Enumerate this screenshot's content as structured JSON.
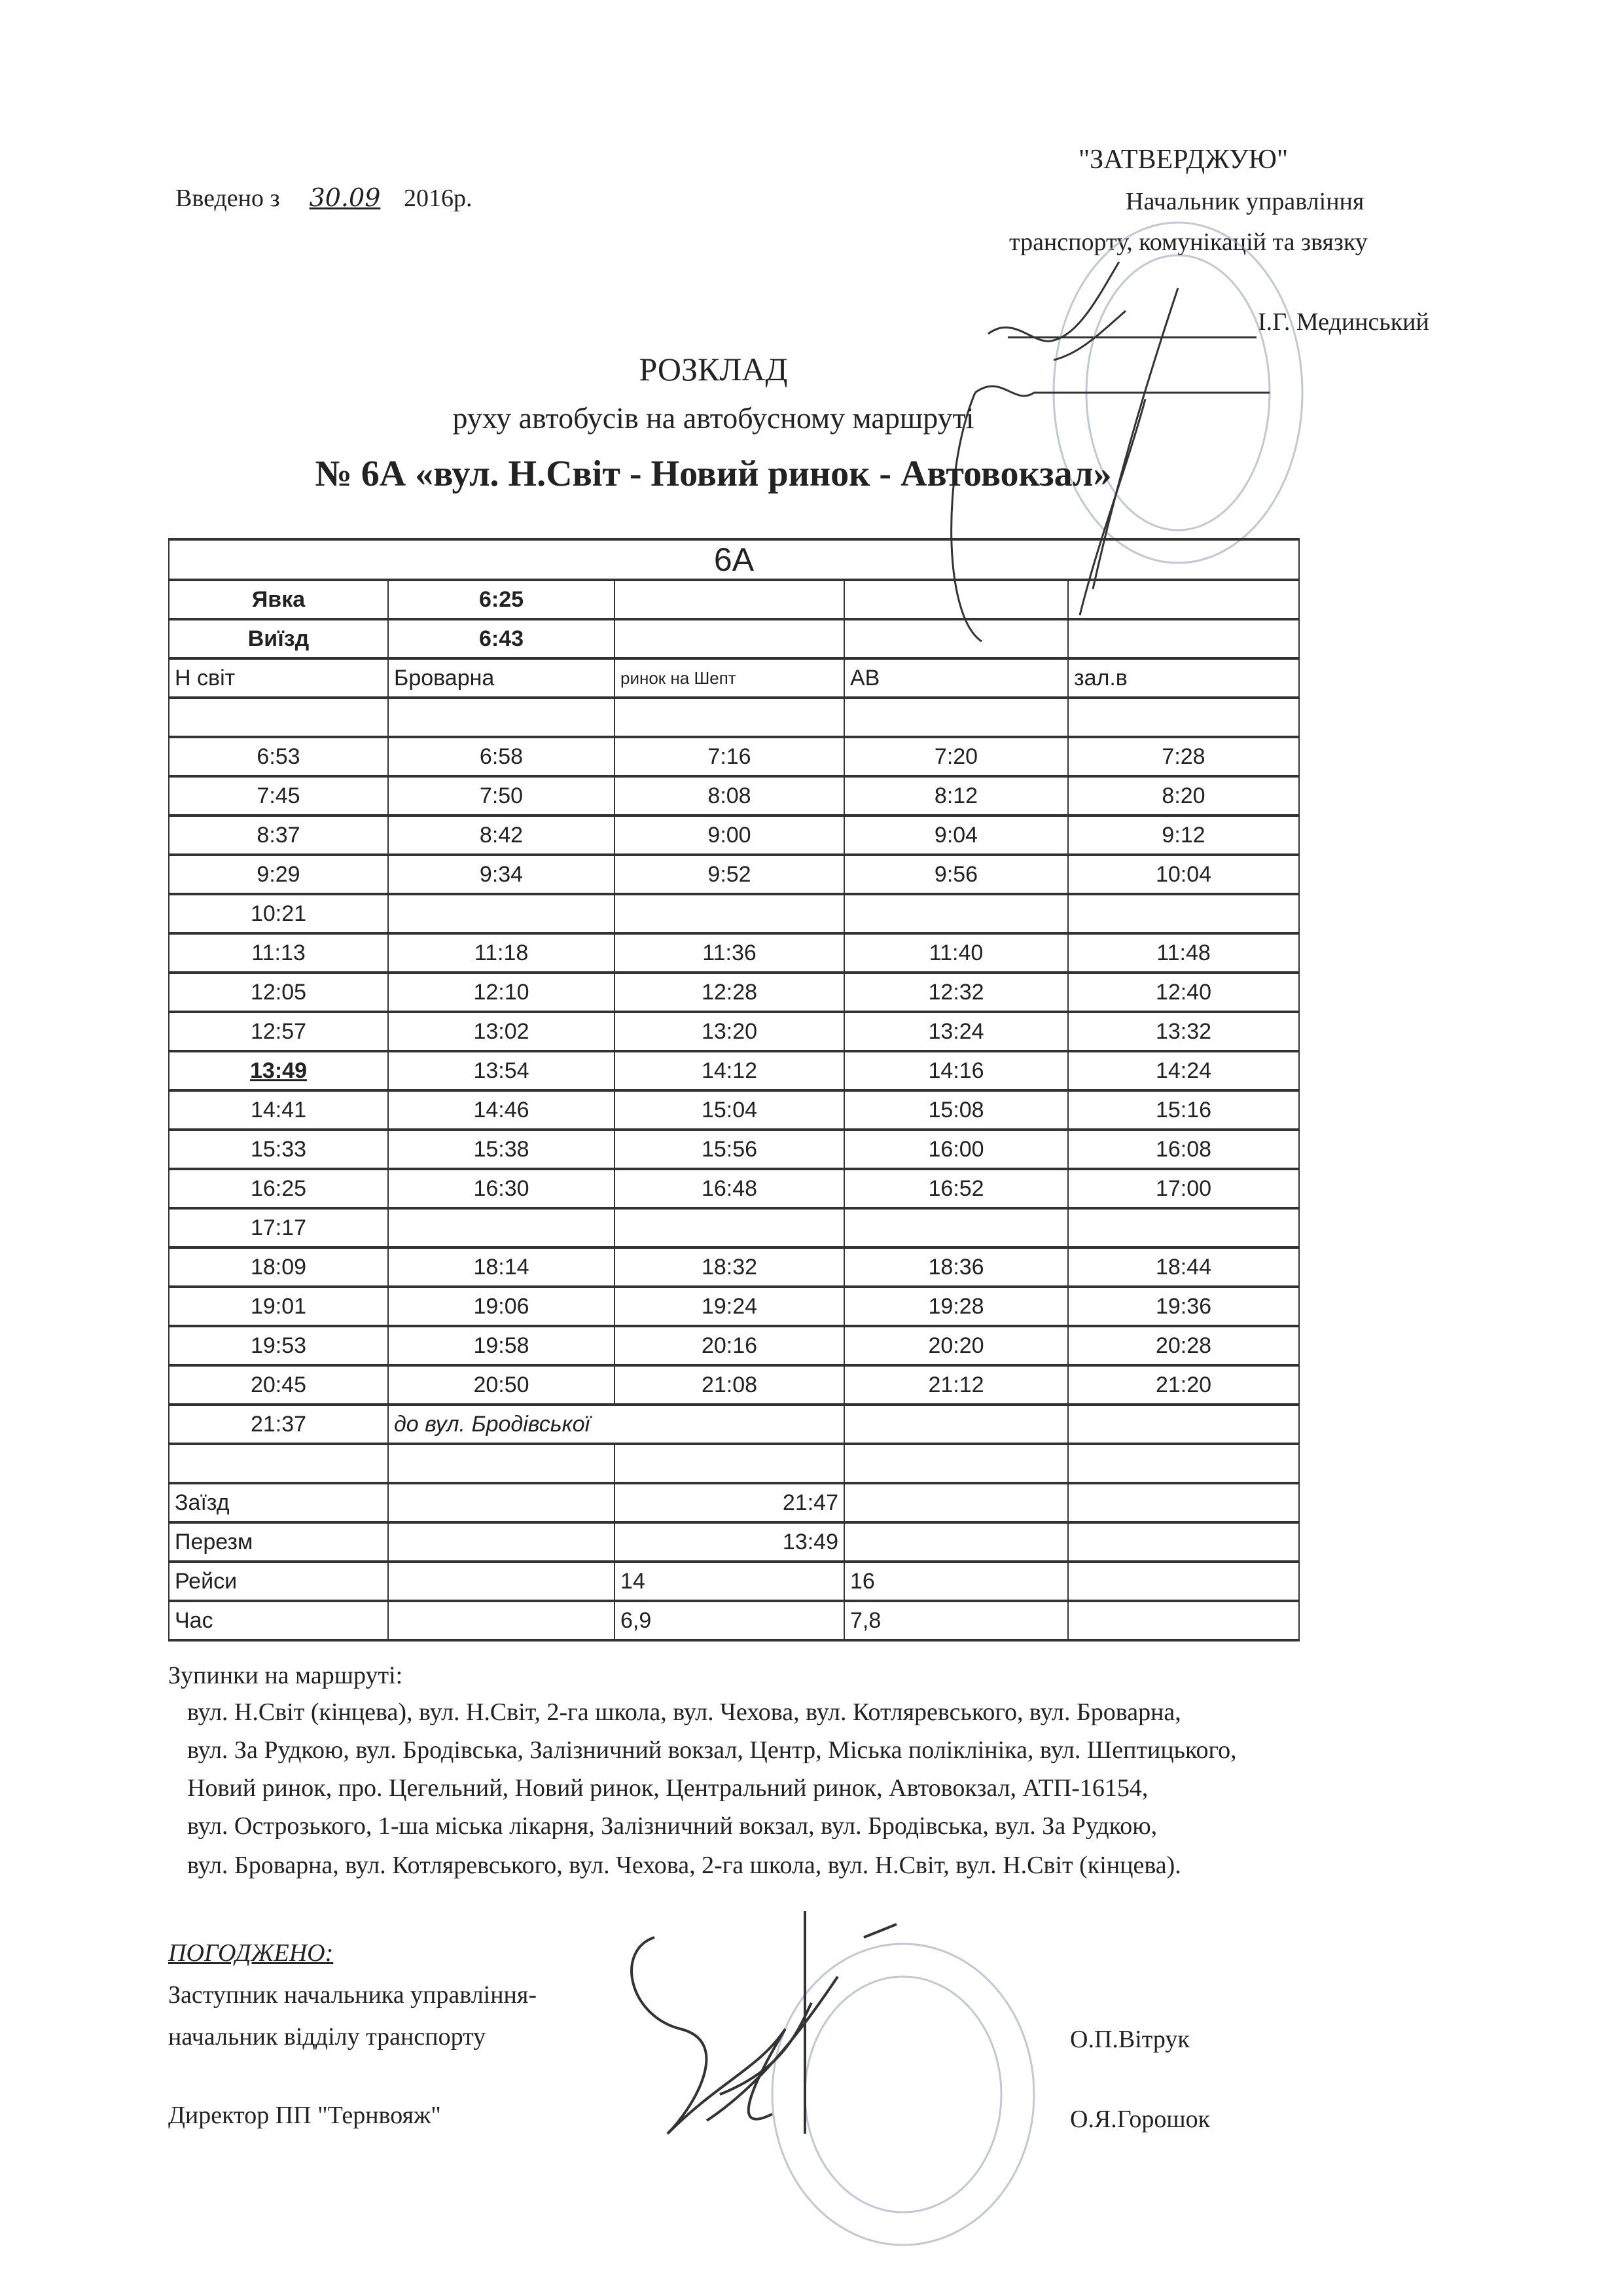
{
  "header": {
    "introduced_prefix": "Введено з",
    "introduced_date_handwritten": "30.09",
    "introduced_year": "2016р.",
    "approve_label": "\"ЗАТВЕРДЖУЮ\"",
    "approver_position_line1": "Начальник управління",
    "approver_position_line2": "транспорту, комунікацій та звязку",
    "approver_name": "І.Г. Мединський"
  },
  "title": {
    "line1": "РОЗКЛАД",
    "line2": "руху автобусів на автобусному маршруті",
    "line3": "№ 6А «вул. Н.Світ - Новий ринок - Автовокзал»"
  },
  "table": {
    "route": "6А",
    "yavka_label": "Явка",
    "yavka_value": "6:25",
    "vyizd_label": "Виїзд",
    "vyizd_value": "6:43",
    "columns": [
      "Н світ",
      "Броварна",
      "ринок на Шепт",
      "АВ",
      "зал.в"
    ],
    "rows": [
      [
        "6:53",
        "6:58",
        "7:16",
        "7:20",
        "7:28"
      ],
      [
        "7:45",
        "7:50",
        "8:08",
        "8:12",
        "8:20"
      ],
      [
        "8:37",
        "8:42",
        "9:00",
        "9:04",
        "9:12"
      ],
      [
        "9:29",
        "9:34",
        "9:52",
        "9:56",
        "10:04"
      ],
      [
        "10:21",
        "",
        "",
        "",
        ""
      ],
      [
        "11:13",
        "11:18",
        "11:36",
        "11:40",
        "11:48"
      ],
      [
        "12:05",
        "12:10",
        "12:28",
        "12:32",
        "12:40"
      ],
      [
        "12:57",
        "13:02",
        "13:20",
        "13:24",
        "13:32"
      ],
      [
        "13:49",
        "13:54",
        "14:12",
        "14:16",
        "14:24"
      ],
      [
        "14:41",
        "14:46",
        "15:04",
        "15:08",
        "15:16"
      ],
      [
        "15:33",
        "15:38",
        "15:56",
        "16:00",
        "16:08"
      ],
      [
        "16:25",
        "16:30",
        "16:48",
        "16:52",
        "17:00"
      ],
      [
        "17:17",
        "",
        "",
        "",
        ""
      ],
      [
        "18:09",
        "18:14",
        "18:32",
        "18:36",
        "18:44"
      ],
      [
        "19:01",
        "19:06",
        "19:24",
        "19:28",
        "19:36"
      ],
      [
        "19:53",
        "19:58",
        "20:16",
        "20:20",
        "20:28"
      ],
      [
        "20:45",
        "20:50",
        "21:08",
        "21:12",
        "21:20"
      ]
    ],
    "last_row": {
      "time": "21:37",
      "note": "до вул. Бродівської"
    },
    "summary": {
      "zaizd_label": "Заїзд",
      "zaizd_value": "21:47",
      "perezm_label": "Перезм",
      "perezm_value": "13:49",
      "reysy_label": "Рейси",
      "reysy_values": [
        "14",
        "16"
      ],
      "chas_label": "Час",
      "chas_values": [
        "6,9",
        "7,8"
      ]
    }
  },
  "stops": {
    "heading": "Зупинки на маршруті:",
    "lines": [
      "вул. Н.Світ (кінцева), вул. Н.Світ, 2-га школа, вул. Чехова, вул. Котляревського, вул. Броварна,",
      "вул. За Рудкою, вул. Бродівська, Залізничний вокзал, Центр, Міська поліклініка, вул. Шептицького,",
      "Новий ринок, про. Цегельний, Новий ринок, Центральний ринок, Автовокзал, АТП-16154,",
      "вул. Острозького, 1-ша міська лікарня, Залізничний вокзал, вул. Бродівська, вул. За Рудкою,",
      "вул. Броварна, вул. Котляревського, вул. Чехова, 2-га школа, вул. Н.Світ, вул. Н.Світ (кінцева)."
    ]
  },
  "agreed": {
    "label": "ПОГОДЖЕНО:",
    "position_line1": "Заступник начальника управління-",
    "position_line2": "начальник відділу транспорту",
    "name1": "О.П.Вітрук",
    "director": "Директор ПП \"Тернвояж\"",
    "name2": "О.Я.Горошок"
  },
  "colors": {
    "ink": "#222222",
    "stamp": "#9aa3b8",
    "signature": "#333333"
  }
}
